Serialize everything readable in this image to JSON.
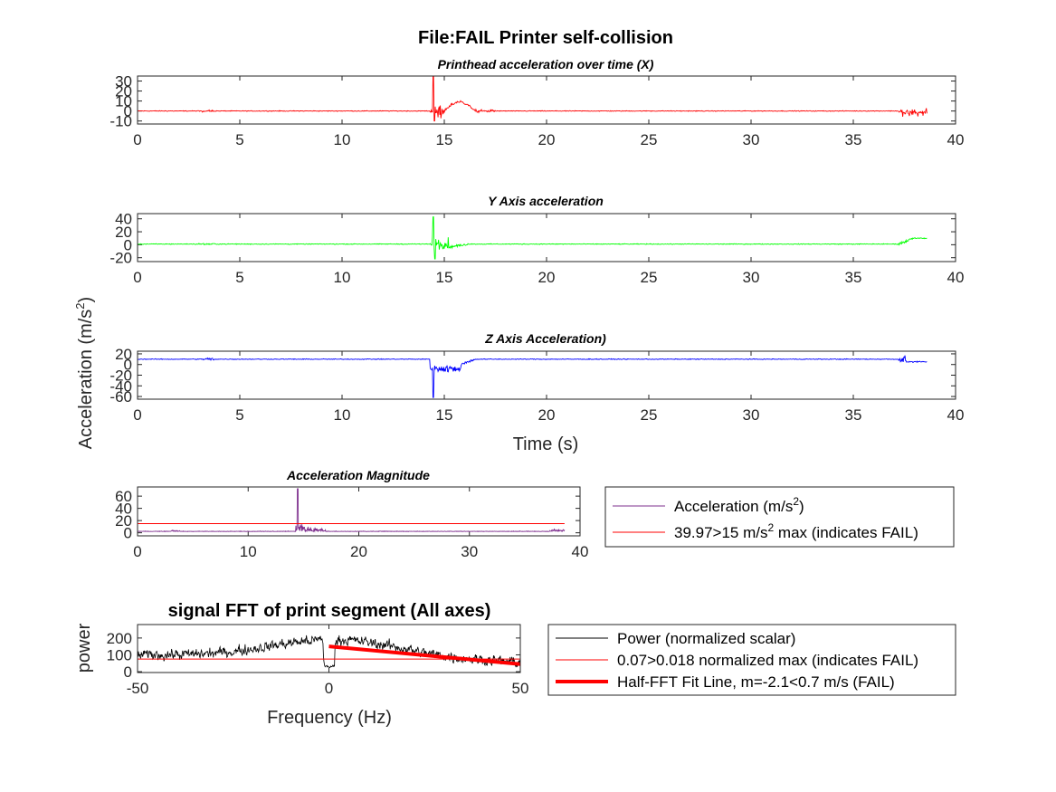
{
  "figure": {
    "title": "File:FAIL Printer self-collision",
    "ylabel_shared": "Acceleration (m/s",
    "ylabel_shared_sup": "2",
    "ylabel_shared_close": ")"
  },
  "chart_data": [
    {
      "id": "x_accel",
      "type": "line",
      "title": "Printhead acceleration over time (X)",
      "xlabel": "",
      "ylabel": "",
      "xlim": [
        0,
        40
      ],
      "ylim": [
        -13,
        35
      ],
      "xticks": [
        0,
        5,
        10,
        15,
        20,
        25,
        30,
        35,
        40
      ],
      "yticks": [
        -10,
        0,
        10,
        20,
        30
      ],
      "color": "#ff0000",
      "grid": false,
      "x_range": [
        0,
        38.6
      ],
      "baseline": 0,
      "events": [
        {
          "t": 14.5,
          "peak": 38,
          "low": -10
        },
        {
          "t": 15.5,
          "hump": 9
        }
      ]
    },
    {
      "id": "y_accel",
      "type": "line",
      "title": "Y Axis acceleration",
      "xlabel": "",
      "ylabel": "",
      "xlim": [
        0,
        40
      ],
      "ylim": [
        -26,
        48
      ],
      "xticks": [
        0,
        5,
        10,
        15,
        20,
        25,
        30,
        35,
        40
      ],
      "yticks": [
        -20,
        0,
        20,
        40
      ],
      "color": "#00ff00",
      "grid": false,
      "x_range": [
        0,
        38.6
      ],
      "baseline": 1,
      "events": [
        {
          "t": 14.5,
          "peak": 43,
          "low": -22
        },
        {
          "t": 38.5,
          "end_level": 10
        }
      ]
    },
    {
      "id": "z_accel",
      "type": "line",
      "title": "Z Axis Acceleration)",
      "xlabel": "Time (s)",
      "ylabel": "",
      "xlim": [
        0,
        40
      ],
      "ylim": [
        -65,
        25
      ],
      "xticks": [
        0,
        5,
        10,
        15,
        20,
        25,
        30,
        35,
        40
      ],
      "yticks": [
        -60,
        -40,
        -20,
        0,
        20
      ],
      "color": "#0000ff",
      "grid": false,
      "x_range": [
        0,
        38.6
      ],
      "baseline": 10,
      "events": [
        {
          "t": 14.5,
          "low": -62
        },
        {
          "t": 15.0,
          "dip": -15
        }
      ]
    },
    {
      "id": "magnitude",
      "type": "line",
      "title": "Acceleration Magnitude",
      "xlabel": "",
      "ylabel": "",
      "xlim": [
        0,
        40
      ],
      "ylim": [
        -5,
        75
      ],
      "xticks": [
        0,
        10,
        20,
        30,
        40
      ],
      "yticks": [
        0,
        20,
        40,
        60
      ],
      "grid": false,
      "legend_position": "outside-right",
      "series": [
        {
          "name": "Acceleration (m/s²)",
          "color": "#7e2f8e",
          "peak": 72,
          "baseline": 2
        },
        {
          "name": "39.97>15 m/s² max (indicates FAIL)",
          "color": "#ff0000",
          "constant": 15
        }
      ],
      "legend": {
        "s0_text": "Acceleration (m/s",
        "s0_sup": "2",
        "s0_close": ")",
        "s1_text": "39.97>15 m/s",
        "s1_sup": "2",
        "s1_close": " max (indicates FAIL)"
      },
      "x_range": [
        0,
        38.6
      ]
    },
    {
      "id": "fft",
      "type": "line",
      "title": "signal FFT of print segment (All axes)",
      "xlabel": "Frequency (Hz)",
      "ylabel": "power",
      "xlim": [
        -50,
        50
      ],
      "ylim": [
        -5,
        280
      ],
      "xticks": [
        -50,
        0,
        50
      ],
      "yticks": [
        0,
        100,
        200
      ],
      "grid": false,
      "legend_position": "outside-right",
      "series": [
        {
          "name": "Power (normalized scalar)",
          "color": "#000000"
        },
        {
          "name": "0.07>0.018 normalized max (indicates FAIL)",
          "color": "#ff0000",
          "constant": 75
        },
        {
          "name": "Half-FFT Fit Line, m=-2.1<0.7 m/s (FAIL)",
          "color": "#ff0000",
          "x": [
            0,
            50
          ],
          "y": [
            150,
            45
          ]
        }
      ]
    }
  ]
}
